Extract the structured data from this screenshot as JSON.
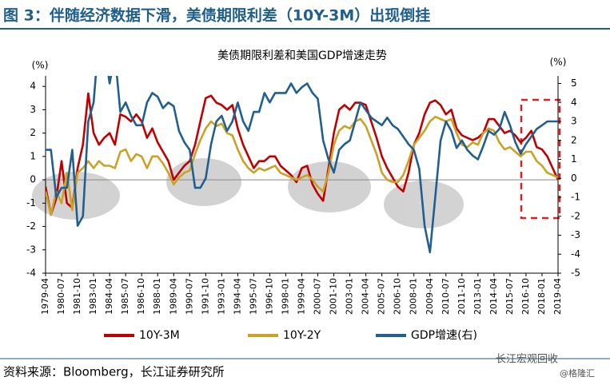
{
  "header": "图 3：伴随经济数据下滑，美债期限利差（10Y-3M）出现倒挂",
  "source": "资料来源：Bloomberg，长江证券研究所",
  "watermark": [
    "长江宏观回收",
    "@格隆汇"
  ],
  "chart_data": {
    "type": "line",
    "title": "美债期限利差和美国GDP增速走势",
    "y_label": "(%)",
    "y2_label": "(%)",
    "categories": [
      "1979-04",
      null,
      null,
      "1980-07",
      null,
      null,
      "1981-10",
      null,
      null,
      "1983-01",
      null,
      null,
      "1984-04",
      null,
      null,
      "1985-07",
      null,
      null,
      "1986-10",
      null,
      null,
      "1988-01",
      null,
      null,
      "1989-04",
      null,
      null,
      "1990-07",
      null,
      null,
      "1991-10",
      null,
      null,
      "1993-01",
      null,
      null,
      "1994-04",
      null,
      null,
      "1995-07",
      null,
      null,
      "1996-10",
      null,
      null,
      "1998-01",
      null,
      null,
      "1999-04",
      null,
      null,
      "2000-07",
      null,
      null,
      "2001-10",
      null,
      null,
      "2003-01",
      null,
      null,
      "2004-04",
      null,
      null,
      "2005-07",
      null,
      null,
      "2006-10",
      null,
      null,
      "2008-01",
      null,
      null,
      "2009-04",
      null,
      null,
      "2010-07",
      null,
      null,
      "2011-10",
      null,
      null,
      "2013-01",
      null,
      null,
      "2014-04",
      null,
      null,
      "2015-07",
      null,
      null,
      "2016-10",
      null,
      null,
      "2018-01",
      null,
      null,
      "2019-04"
    ],
    "ylim": [
      -4,
      4.45
    ],
    "yticks": [
      -4,
      -3,
      -2,
      -1,
      0,
      1,
      2,
      3,
      4
    ],
    "y2lim": [
      -5,
      5.4
    ],
    "y2ticks": [
      -5,
      -4,
      -3,
      -2,
      -1,
      0,
      1,
      2,
      3,
      4,
      5
    ],
    "series": [
      {
        "name": "10Y-3M",
        "color": "#c00000",
        "values": [
          -0.3,
          -1.5,
          -0.8,
          0.8,
          -1.0,
          -1.2,
          0.5,
          1.5,
          3.7,
          2.0,
          1.5,
          1.8,
          2.0,
          1.5,
          2.8,
          2.7,
          2.5,
          2.8,
          2.5,
          1.8,
          2.2,
          1.6,
          1.2,
          0.8,
          0.0,
          0.3,
          0.6,
          0.8,
          1.5,
          2.5,
          3.5,
          3.6,
          3.3,
          3.2,
          3.0,
          3.2,
          2.2,
          1.5,
          1.0,
          0.5,
          0.8,
          0.8,
          1.0,
          1.0,
          0.6,
          0.4,
          0.2,
          -0.1,
          0.5,
          0.6,
          -0.2,
          -0.6,
          -0.9,
          0.5,
          2.0,
          3.0,
          3.2,
          3.0,
          3.3,
          3.3,
          3.2,
          2.5,
          1.8,
          1.0,
          0.5,
          0.1,
          -0.3,
          -0.5,
          0.3,
          1.5,
          2.0,
          2.8,
          3.3,
          3.4,
          3.2,
          2.8,
          3.0,
          2.2,
          1.9,
          1.8,
          1.7,
          1.8,
          2.0,
          2.6,
          2.6,
          2.3,
          2.0,
          2.1,
          1.9,
          1.6,
          1.8,
          2.1,
          1.4,
          1.3,
          1.0,
          0.5,
          0.0
        ]
      },
      {
        "name": "10Y-2Y",
        "color": "#c9a227",
        "values": [
          -0.5,
          -1.5,
          -0.5,
          -1.0,
          0.3,
          -1.3,
          0.3,
          0.5,
          0.8,
          0.5,
          0.8,
          0.6,
          0.6,
          0.5,
          1.2,
          1.3,
          0.8,
          1.1,
          1.0,
          0.5,
          1.0,
          1.0,
          0.7,
          0.3,
          -0.2,
          0.1,
          0.3,
          0.4,
          1.1,
          1.7,
          2.2,
          2.5,
          2.3,
          2.4,
          2.0,
          1.9,
          1.3,
          0.8,
          0.5,
          0.3,
          0.5,
          0.4,
          0.5,
          0.6,
          0.3,
          0.2,
          0.1,
          0.0,
          0.1,
          0.2,
          0.0,
          -0.3,
          -0.5,
          0.3,
          1.5,
          2.1,
          2.3,
          2.2,
          2.5,
          2.6,
          2.3,
          1.7,
          1.1,
          0.3,
          0.0,
          -0.1,
          -0.1,
          0.2,
          0.8,
          1.5,
          1.8,
          2.1,
          2.5,
          2.7,
          2.6,
          2.5,
          2.6,
          2.0,
          1.5,
          1.4,
          1.6,
          1.5,
          2.0,
          2.2,
          2.1,
          1.6,
          1.3,
          1.4,
          1.2,
          1.0,
          1.2,
          1.2,
          0.8,
          0.6,
          0.3,
          0.2,
          0.1
        ]
      },
      {
        "name": "GDP增速(右)",
        "color": "#215f8f",
        "axis": "y2",
        "values": [
          1.5,
          1.5,
          -1.0,
          -0.5,
          -0.5,
          1.5,
          -2.5,
          -2.0,
          3.0,
          4.0,
          7.5,
          7.0,
          5.0,
          6.5,
          3.5,
          4.0,
          3.3,
          2.8,
          2.8,
          4.0,
          4.5,
          4.3,
          3.7,
          4.0,
          3.8,
          2.5,
          1.9,
          1.5,
          -0.5,
          -0.5,
          0.0,
          1.8,
          3.0,
          3.3,
          2.5,
          3.0,
          4.0,
          3.0,
          2.5,
          3.5,
          3.5,
          4.5,
          4.0,
          4.5,
          4.5,
          4.5,
          5.0,
          4.5,
          4.8,
          5.0,
          4.5,
          4.2,
          2.0,
          1.0,
          0.3,
          1.5,
          1.8,
          2.0,
          3.0,
          4.0,
          3.6,
          3.2,
          3.0,
          2.8,
          3.2,
          2.8,
          2.6,
          2.2,
          1.8,
          1.5,
          0.5,
          -2.5,
          -3.9,
          -1.0,
          2.0,
          3.0,
          2.5,
          1.6,
          2.0,
          1.5,
          1.2,
          1.0,
          1.7,
          2.5,
          2.3,
          2.6,
          3.5,
          2.8,
          1.9,
          1.3,
          1.8,
          2.2,
          2.6,
          2.8,
          3.0,
          3.0,
          3.0
        ]
      }
    ]
  }
}
